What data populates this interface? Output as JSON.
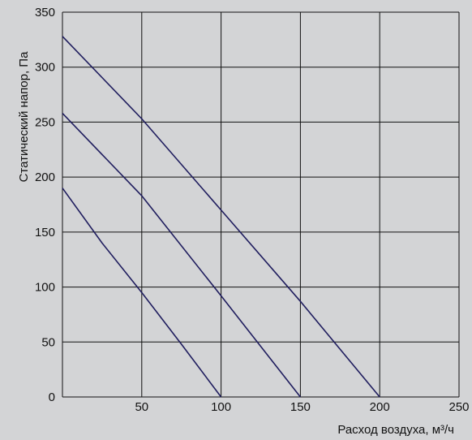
{
  "chart_data": {
    "type": "line",
    "title": "",
    "xlabel": "Расход воздуха, м³/ч",
    "ylabel": "Статический напор, Па",
    "xlim": [
      0,
      250
    ],
    "ylim": [
      0,
      350
    ],
    "xticks": [
      50,
      100,
      150,
      200,
      250
    ],
    "yticks": [
      0,
      50,
      100,
      150,
      200,
      250,
      300,
      350
    ],
    "x_tick_labels": [
      "50",
      "100",
      "150",
      "200",
      "250"
    ],
    "y_tick_labels": [
      "0",
      "50",
      "100",
      "150",
      "200",
      "250",
      "300",
      "350"
    ],
    "grid": true,
    "legend": "none",
    "line_color": "#1f1d5e",
    "series": [
      {
        "x": [
          0,
          25,
          50,
          75,
          100
        ],
        "y": [
          190,
          140,
          95,
          48,
          0
        ]
      },
      {
        "x": [
          0,
          50,
          100,
          150
        ],
        "y": [
          258,
          183,
          92,
          0
        ]
      },
      {
        "x": [
          0,
          50,
          100,
          150,
          200
        ],
        "y": [
          328,
          253,
          170,
          87,
          0
        ]
      }
    ]
  }
}
